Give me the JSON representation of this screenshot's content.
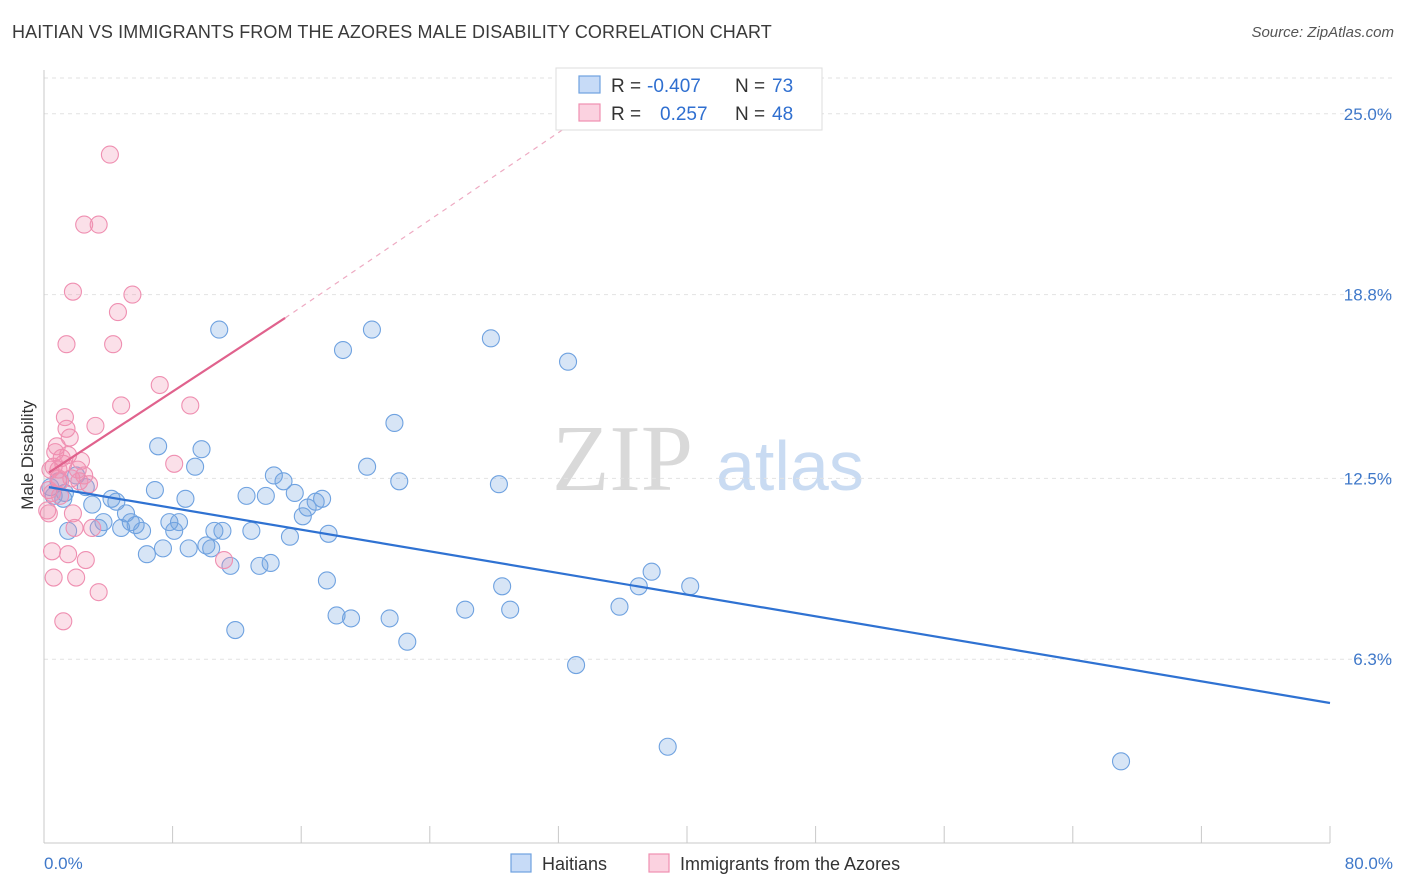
{
  "title": "HAITIAN VS IMMIGRANTS FROM THE AZORES MALE DISABILITY CORRELATION CHART",
  "source": "Source: ZipAtlas.com",
  "watermark": {
    "zip": "ZIP",
    "atlas": "atlas"
  },
  "chart_data": {
    "type": "scatter",
    "ylabel": "Male Disability",
    "xlim": [
      0,
      80
    ],
    "ylim": [
      0,
      26.5
    ],
    "x_ticks": [
      {
        "value": 0,
        "label": "0.0%"
      },
      {
        "value": 80,
        "label": "80.0%"
      }
    ],
    "y_ticks": [
      {
        "value": 6.3,
        "label": "6.3%"
      },
      {
        "value": 12.5,
        "label": "12.5%"
      },
      {
        "value": 18.8,
        "label": "18.8%"
      },
      {
        "value": 25.0,
        "label": "25.0%"
      }
    ],
    "grid": true,
    "legend_top": [
      {
        "r_label": "R = ",
        "r_value": "-0.407",
        "n_label": "N = ",
        "n_value": "73",
        "color": "#6fa2e0"
      },
      {
        "r_label": "R = ",
        "r_value": "0.257",
        "n_label": "N = ",
        "n_value": "48",
        "color": "#ef8fb1"
      }
    ],
    "series": [
      {
        "name": "Haitians",
        "color": "#6fa2e0",
        "trend": {
          "x0": 0.3,
          "y0": 12.2,
          "x1": 80,
          "y1": 4.8,
          "color": "#2f72d2"
        },
        "points": [
          [
            0.4,
            12.2
          ],
          [
            0.6,
            11.9
          ],
          [
            0.9,
            12.4
          ],
          [
            1.2,
            11.8
          ],
          [
            1.5,
            10.7
          ],
          [
            2.0,
            12.6
          ],
          [
            2.6,
            12.2
          ],
          [
            3.0,
            11.6
          ],
          [
            3.4,
            10.8
          ],
          [
            3.7,
            11.0
          ],
          [
            4.2,
            11.8
          ],
          [
            4.5,
            11.7
          ],
          [
            4.8,
            10.8
          ],
          [
            5.1,
            11.3
          ],
          [
            5.4,
            11.0
          ],
          [
            5.7,
            10.9
          ],
          [
            6.1,
            10.7
          ],
          [
            6.4,
            9.9
          ],
          [
            6.9,
            12.1
          ],
          [
            7.1,
            13.6
          ],
          [
            7.4,
            10.1
          ],
          [
            7.8,
            11.0
          ],
          [
            8.1,
            10.7
          ],
          [
            8.4,
            11.0
          ],
          [
            8.8,
            11.8
          ],
          [
            9.0,
            10.1
          ],
          [
            9.4,
            12.9
          ],
          [
            9.8,
            13.5
          ],
          [
            10.1,
            10.2
          ],
          [
            10.4,
            10.1
          ],
          [
            10.6,
            10.7
          ],
          [
            10.9,
            17.6
          ],
          [
            11.1,
            10.7
          ],
          [
            11.6,
            9.5
          ],
          [
            11.9,
            7.3
          ],
          [
            12.6,
            11.9
          ],
          [
            12.9,
            10.7
          ],
          [
            13.4,
            9.5
          ],
          [
            13.8,
            11.9
          ],
          [
            14.1,
            9.6
          ],
          [
            14.3,
            12.6
          ],
          [
            14.9,
            12.4
          ],
          [
            15.3,
            10.5
          ],
          [
            15.6,
            12.0
          ],
          [
            16.1,
            11.2
          ],
          [
            16.4,
            11.5
          ],
          [
            16.9,
            11.7
          ],
          [
            17.3,
            11.8
          ],
          [
            17.7,
            10.6
          ],
          [
            17.6,
            9.0
          ],
          [
            18.2,
            7.8
          ],
          [
            18.6,
            16.9
          ],
          [
            19.1,
            7.7
          ],
          [
            20.1,
            12.9
          ],
          [
            20.4,
            17.6
          ],
          [
            21.5,
            7.7
          ],
          [
            21.8,
            14.4
          ],
          [
            22.1,
            12.4
          ],
          [
            22.6,
            6.9
          ],
          [
            26.2,
            8.0
          ],
          [
            27.8,
            17.3
          ],
          [
            28.3,
            12.3
          ],
          [
            28.5,
            8.8
          ],
          [
            29.0,
            8.0
          ],
          [
            32.6,
            16.5
          ],
          [
            33.1,
            6.1
          ],
          [
            35.8,
            8.1
          ],
          [
            37.0,
            8.8
          ],
          [
            37.8,
            9.3
          ],
          [
            38.8,
            3.3
          ],
          [
            40.2,
            8.8
          ],
          [
            67.0,
            2.8
          ],
          [
            1.3,
            12.0
          ]
        ]
      },
      {
        "name": "Immigrants from the Azores",
        "color": "#ef8fb1",
        "trend": {
          "x0": 0.3,
          "y0": 12.7,
          "x1": 15.0,
          "y1": 18.0,
          "color": "#e0628d",
          "extend_to": {
            "x": 34.0,
            "y": 25.1
          }
        },
        "points": [
          [
            0.2,
            11.4
          ],
          [
            0.3,
            11.3
          ],
          [
            0.4,
            12.8
          ],
          [
            0.5,
            12.0
          ],
          [
            0.6,
            12.9
          ],
          [
            0.7,
            13.4
          ],
          [
            0.8,
            13.6
          ],
          [
            0.9,
            12.5
          ],
          [
            1.0,
            12.4
          ],
          [
            1.1,
            13.2
          ],
          [
            1.2,
            13.0
          ],
          [
            1.3,
            14.6
          ],
          [
            1.4,
            14.2
          ],
          [
            1.5,
            13.3
          ],
          [
            1.6,
            13.9
          ],
          [
            1.7,
            12.5
          ],
          [
            1.8,
            11.3
          ],
          [
            1.9,
            10.8
          ],
          [
            2.0,
            9.1
          ],
          [
            2.1,
            12.8
          ],
          [
            2.3,
            13.1
          ],
          [
            2.5,
            12.6
          ],
          [
            2.6,
            9.7
          ],
          [
            2.8,
            12.3
          ],
          [
            3.0,
            10.8
          ],
          [
            3.2,
            14.3
          ],
          [
            3.4,
            8.6
          ],
          [
            0.5,
            10.0
          ],
          [
            0.6,
            9.1
          ],
          [
            1.2,
            7.6
          ],
          [
            1.4,
            17.1
          ],
          [
            1.8,
            18.9
          ],
          [
            2.5,
            21.2
          ],
          [
            3.4,
            21.2
          ],
          [
            4.1,
            23.6
          ],
          [
            4.3,
            17.1
          ],
          [
            4.6,
            18.2
          ],
          [
            4.8,
            15.0
          ],
          [
            5.5,
            18.8
          ],
          [
            7.2,
            15.7
          ],
          [
            8.1,
            13.0
          ],
          [
            9.1,
            15.0
          ],
          [
            11.2,
            9.7
          ],
          [
            1.5,
            9.9
          ],
          [
            0.3,
            12.1
          ],
          [
            0.9,
            12.8
          ],
          [
            1.0,
            11.9
          ],
          [
            2.2,
            12.4
          ]
        ]
      }
    ]
  }
}
